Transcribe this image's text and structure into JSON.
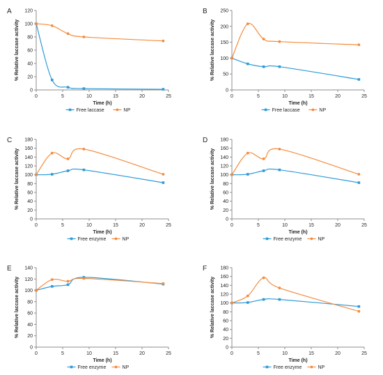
{
  "colors": {
    "free": "#2E9BD6",
    "np": "#F58B3C",
    "axis": "#8C8C8C",
    "text": "#222222"
  },
  "chart_data": [
    {
      "panel": "A",
      "type": "line",
      "xlabel": "Time (h)",
      "ylabel": "% Relative laccase activity",
      "xlim": [
        0,
        25
      ],
      "ylim": [
        0,
        120
      ],
      "xticks": [
        0,
        5,
        10,
        15,
        20,
        25
      ],
      "yticks": [
        0,
        20,
        40,
        60,
        80,
        100,
        120
      ],
      "grid": false,
      "legend": "bottom",
      "series": [
        {
          "name": "Free laccase",
          "x": [
            0,
            3,
            6,
            9,
            24
          ],
          "y": [
            100,
            15,
            4,
            2,
            1
          ]
        },
        {
          "name": "NP",
          "x": [
            0,
            3,
            6,
            9,
            24
          ],
          "y": [
            100,
            97,
            85,
            80,
            74
          ]
        }
      ]
    },
    {
      "panel": "B",
      "type": "line",
      "xlabel": "Time (h)",
      "ylabel": "% Relative laccase activity",
      "xlim": [
        0,
        25
      ],
      "ylim": [
        0,
        250
      ],
      "xticks": [
        0,
        5,
        10,
        15,
        20,
        25
      ],
      "yticks": [
        0,
        50,
        100,
        150,
        200,
        250
      ],
      "grid": false,
      "legend": "bottom",
      "series": [
        {
          "name": "Free laccase",
          "x": [
            0,
            3,
            6,
            9,
            24
          ],
          "y": [
            100,
            82,
            73,
            73,
            33
          ]
        },
        {
          "name": "NP",
          "x": [
            0,
            3,
            6,
            9,
            24
          ],
          "y": [
            100,
            208,
            160,
            152,
            142
          ]
        }
      ]
    },
    {
      "panel": "C",
      "type": "line",
      "xlabel": "Time (h)",
      "ylabel": "% Relative laccase activity",
      "xlim": [
        0,
        25
      ],
      "ylim": [
        0,
        180
      ],
      "xticks": [
        0,
        5,
        10,
        15,
        20,
        25
      ],
      "yticks": [
        0,
        20,
        40,
        60,
        80,
        100,
        120,
        140,
        160,
        180
      ],
      "grid": false,
      "legend": "bottom",
      "series": [
        {
          "name": "Free enzyme",
          "x": [
            0,
            3,
            6,
            9,
            24
          ],
          "y": [
            100,
            101,
            109,
            111,
            82
          ]
        },
        {
          "name": "NP",
          "x": [
            0,
            3,
            6,
            9,
            24
          ],
          "y": [
            100,
            149,
            136,
            158,
            101
          ]
        }
      ]
    },
    {
      "panel": "D",
      "type": "line",
      "xlabel": "Time (h)",
      "ylabel": "% Relative laccase activity",
      "xlim": [
        0,
        25
      ],
      "ylim": [
        0,
        180
      ],
      "xticks": [
        0,
        5,
        10,
        15,
        20,
        25
      ],
      "yticks": [
        0,
        20,
        40,
        60,
        80,
        100,
        120,
        140,
        160,
        180
      ],
      "grid": false,
      "legend": "bottom",
      "series": [
        {
          "name": "Free enzyme",
          "x": [
            0,
            3,
            6,
            9,
            24
          ],
          "y": [
            100,
            101,
            109,
            111,
            82
          ]
        },
        {
          "name": "NP",
          "x": [
            0,
            3,
            6,
            9,
            24
          ],
          "y": [
            100,
            149,
            136,
            158,
            101
          ]
        }
      ]
    },
    {
      "panel": "E",
      "type": "line",
      "xlabel": "Time (h)",
      "ylabel": "% Relative laccase activity",
      "xlim": [
        0,
        25
      ],
      "ylim": [
        0,
        140
      ],
      "xticks": [
        0,
        5,
        10,
        15,
        20,
        25
      ],
      "yticks": [
        0,
        20,
        40,
        60,
        80,
        100,
        120,
        140
      ],
      "grid": false,
      "legend": "bottom",
      "series": [
        {
          "name": "Free enzyme",
          "x": [
            0,
            3,
            6,
            9,
            24
          ],
          "y": [
            100,
            107,
            110,
            123,
            111
          ]
        },
        {
          "name": "NP",
          "x": [
            0,
            3,
            6,
            9,
            24
          ],
          "y": [
            100,
            119,
            116,
            121,
            112
          ]
        }
      ]
    },
    {
      "panel": "F",
      "type": "line",
      "xlabel": "Time (h)",
      "ylabel": "% Relative laccase activity",
      "xlim": [
        0,
        25
      ],
      "ylim": [
        0,
        180
      ],
      "xticks": [
        0,
        5,
        10,
        15,
        20,
        25
      ],
      "yticks": [
        0,
        20,
        40,
        60,
        80,
        100,
        120,
        140,
        160,
        180
      ],
      "grid": false,
      "legend": "bottom",
      "series": [
        {
          "name": "Free enzyme",
          "x": [
            0,
            3,
            6,
            9,
            24
          ],
          "y": [
            100,
            101,
            108,
            108,
            92
          ]
        },
        {
          "name": "NP",
          "x": [
            0,
            3,
            6,
            9,
            24
          ],
          "y": [
            100,
            116,
            157,
            134,
            81
          ]
        }
      ]
    }
  ]
}
